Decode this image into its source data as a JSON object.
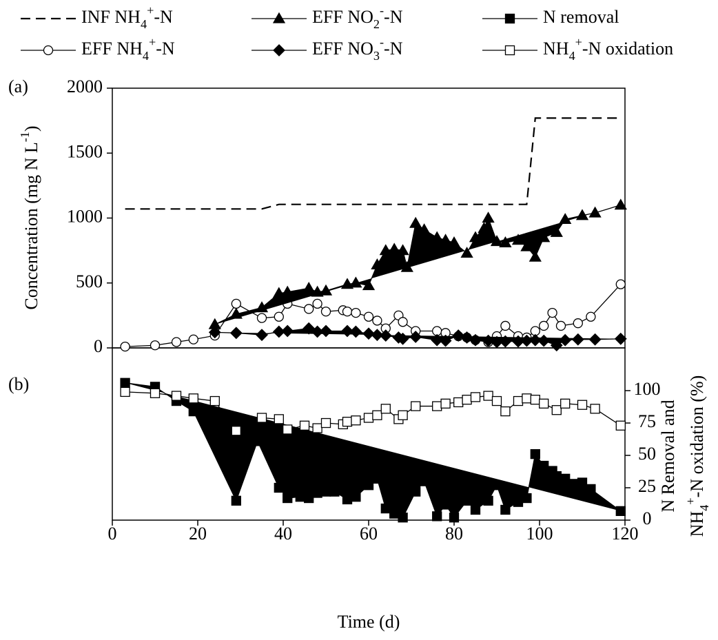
{
  "chart_data": [
    {
      "type": "line",
      "panel_label": "(a)",
      "ylabel": "Concentration  (mg N  L-1)",
      "xlim": [
        0,
        120
      ],
      "ylim": [
        0,
        2000
      ],
      "yticks": [
        0,
        500,
        1000,
        1500,
        2000
      ],
      "series": [
        {
          "name": "INF NH4+-N",
          "color": "#000000",
          "dash": true,
          "marker": "none",
          "x": [
            3,
            35,
            39,
            97,
            99,
            119
          ],
          "values": [
            1070,
            1070,
            1105,
            1105,
            1770,
            1770
          ]
        },
        {
          "name": "EFF NH4+-N",
          "color": "#000000",
          "marker": "circle",
          "marker_fill": "#ffffff",
          "x": [
            3,
            10,
            15,
            19,
            24,
            29,
            35,
            39,
            41,
            46,
            48,
            50,
            54,
            55,
            57,
            60,
            62,
            64,
            67,
            68,
            71,
            76,
            78,
            81,
            83,
            85,
            88,
            90,
            92,
            95,
            97,
            99,
            101,
            103,
            105,
            109,
            112,
            119
          ],
          "values": [
            10,
            20,
            45,
            65,
            95,
            340,
            230,
            240,
            340,
            300,
            340,
            280,
            290,
            280,
            270,
            240,
            210,
            150,
            250,
            200,
            130,
            130,
            115,
            90,
            80,
            60,
            45,
            90,
            170,
            90,
            80,
            130,
            170,
            270,
            170,
            190,
            240,
            490
          ]
        },
        {
          "name": "EFF NO2--N",
          "color": "#000000",
          "marker": "triangle",
          "marker_fill": "#000000",
          "filled": true,
          "x": [
            24,
            29,
            35,
            39,
            41,
            46,
            48,
            50,
            55,
            57,
            60,
            62,
            64,
            66,
            68,
            69,
            71,
            73,
            76,
            78,
            80,
            83,
            85,
            87,
            88,
            90,
            92,
            95,
            97,
            99,
            101,
            104,
            106,
            110,
            113,
            119
          ],
          "values": [
            180,
            260,
            310,
            420,
            430,
            460,
            430,
            440,
            490,
            500,
            480,
            640,
            750,
            760,
            750,
            620,
            960,
            910,
            850,
            830,
            810,
            730,
            850,
            920,
            1000,
            820,
            810,
            830,
            780,
            700,
            850,
            890,
            990,
            1020,
            1040,
            1100
          ]
        },
        {
          "name": "EFF NO3--N",
          "color": "#000000",
          "marker": "diamond",
          "marker_fill": "#000000",
          "filled": true,
          "x": [
            24,
            29,
            35,
            39,
            41,
            46,
            48,
            50,
            55,
            57,
            60,
            62,
            64,
            67,
            68,
            71,
            76,
            78,
            81,
            83,
            85,
            88,
            90,
            92,
            95,
            97,
            99,
            101,
            104,
            106,
            109,
            113,
            119
          ],
          "values": [
            120,
            115,
            100,
            125,
            130,
            150,
            125,
            130,
            130,
            125,
            110,
            100,
            95,
            80,
            70,
            85,
            60,
            55,
            95,
            80,
            60,
            55,
            45,
            50,
            50,
            55,
            60,
            55,
            20,
            60,
            65,
            65,
            70
          ]
        }
      ]
    },
    {
      "type": "line",
      "panel_label": "(b)",
      "xlabel": "Time (d)",
      "y2label": [
        "N Removal  and",
        "NH4+-N oxidation  (%)"
      ],
      "xlim": [
        0,
        120
      ],
      "xticks": [
        0,
        20,
        40,
        60,
        80,
        100,
        120
      ],
      "y2lim": [
        0,
        133
      ],
      "y2ticks": [
        0,
        25,
        50,
        75,
        100
      ],
      "series": [
        {
          "name": "N removal",
          "color": "#000000",
          "marker": "square",
          "marker_fill": "#000000",
          "filled": true,
          "axis": "y2",
          "x": [
            3,
            10,
            15,
            19,
            29,
            34,
            39,
            41,
            44,
            46,
            48,
            50,
            52,
            55,
            57,
            60,
            62,
            64,
            66,
            68,
            71,
            73,
            76,
            78,
            80,
            83,
            85,
            88,
            90,
            92,
            95,
            97,
            99,
            101,
            103,
            104,
            106,
            108,
            110,
            112,
            119
          ],
          "values": [
            106,
            103,
            92,
            84,
            15,
            61,
            25,
            17,
            18,
            17,
            21,
            22,
            22,
            16,
            18,
            27,
            32,
            9,
            5,
            2,
            22,
            30,
            3,
            12,
            2,
            15,
            8,
            15,
            27,
            8,
            14,
            17,
            51,
            42,
            38,
            34,
            32,
            28,
            29,
            24,
            7
          ]
        },
        {
          "name": "NH4+-N oxidation",
          "color": "#000000",
          "marker": "square",
          "marker_fill": "#ffffff",
          "axis": "y2",
          "x": [
            3,
            10,
            15,
            19,
            24,
            29,
            35,
            39,
            41,
            45,
            48,
            50,
            54,
            55,
            57,
            60,
            62,
            64,
            67,
            68,
            71,
            76,
            78,
            81,
            83,
            85,
            88,
            90,
            92,
            95,
            97,
            99,
            101,
            104,
            106,
            110,
            113,
            119
          ],
          "values": [
            99,
            98,
            96,
            94,
            92,
            69,
            79,
            78,
            70,
            73,
            71,
            75,
            74,
            76,
            77,
            79,
            81,
            86,
            78,
            81,
            88,
            88,
            90,
            91,
            93,
            95,
            96,
            92,
            84,
            92,
            94,
            93,
            90,
            85,
            90,
            89,
            86,
            73
          ]
        }
      ]
    }
  ]
}
